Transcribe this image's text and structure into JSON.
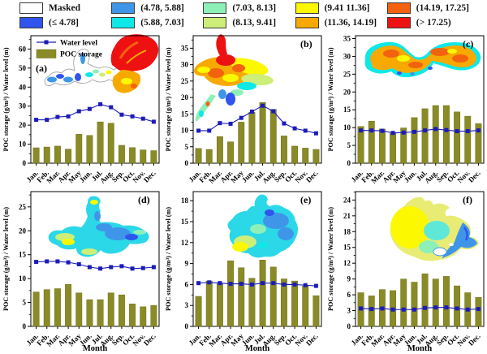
{
  "legend": {
    "items": [
      {
        "label": "Masked",
        "color": "#ffffff"
      },
      {
        "label": "(≤ 4.78]",
        "color": "#2f55ee"
      },
      {
        "label": "(4.78, 5.88]",
        "color": "#3f96e8"
      },
      {
        "label": "(5.88, 7.03]",
        "color": "#10e8e8"
      },
      {
        "label": "(7.03, 8.13]",
        "color": "#8df0b8"
      },
      {
        "label": "(8.13, 9.41]",
        "color": "#cdee78"
      },
      {
        "label": "(9.41 11.36]",
        "color": "#fcf800"
      },
      {
        "label": "(11.36, 14.19]",
        "color": "#f7a900"
      },
      {
        "label": "(14.19, 17.25]",
        "color": "#f2620f"
      },
      {
        "label": "(> 17.25)",
        "color": "#ee1111"
      }
    ]
  },
  "series_legend": {
    "water_level": "Water level",
    "poc_storage": "POC storage"
  },
  "axis": {
    "ylabel": "POC storage (g/m³) / Water level (m)",
    "xlabel": "Month"
  },
  "months": [
    "Jan.",
    "Feb.",
    "Mar.",
    "Apr.",
    "May",
    "Jun.",
    "Jul.",
    "Aug.",
    "Sep.",
    "Oct.",
    "Nov.",
    "Dec."
  ],
  "colors": {
    "bar": "#8a8b26",
    "bar_edge": "#6d6e18",
    "line": "#1c1cb8"
  },
  "chart_data": [
    {
      "type": "bar+line",
      "panel_label": "(a)",
      "letter_pos": "left",
      "inner_legend": true,
      "show_month_label": false,
      "ylim": [
        0,
        67
      ],
      "ytick_step": 10,
      "ytick_max": 60,
      "bar_series": "POC storage",
      "bars": [
        8.1,
        8.5,
        9.0,
        7.4,
        15.2,
        14.6,
        21.7,
        21.0,
        9.4,
        8.2,
        7.0,
        6.6
      ],
      "line_series": "Water level",
      "line": [
        22.8,
        22.8,
        24.3,
        24.6,
        27.3,
        28.5,
        31.0,
        29.4,
        25.5,
        24.6,
        23.4,
        21.8
      ]
    },
    {
      "type": "bar+line",
      "panel_label": "(b)",
      "letter_pos": "right",
      "inner_legend": false,
      "show_month_label": false,
      "ylim": [
        0,
        38.8
      ],
      "ytick_step": 5,
      "ytick_max": 35,
      "bar_series": "POC storage",
      "bars": [
        4.5,
        4.2,
        8.1,
        6.5,
        12.5,
        15.5,
        18.5,
        16.4,
        8.3,
        5.2,
        4.6,
        4.2
      ],
      "line_series": "Water level",
      "line": [
        9.9,
        9.9,
        12.2,
        12.0,
        13.8,
        15.7,
        17.5,
        15.8,
        12.1,
        10.6,
        9.9,
        9.1
      ]
    },
    {
      "type": "bar+line",
      "panel_label": "(c)",
      "letter_pos": "right",
      "inner_legend": false,
      "show_month_label": false,
      "ylim": [
        0,
        35.8
      ],
      "ytick_step": 5,
      "ytick_max": 35,
      "bar_series": "POC storage",
      "bars": [
        10.3,
        11.8,
        9.6,
        8.4,
        9.9,
        12.8,
        15.3,
        16.2,
        16.2,
        14.4,
        13.2,
        11.1
      ],
      "line_series": "Water level",
      "line": [
        9.2,
        9.2,
        9.1,
        8.5,
        8.6,
        8.8,
        9.2,
        9.6,
        9.3,
        9.0,
        9.0,
        9.2
      ]
    },
    {
      "type": "bar+line",
      "panel_label": "(d)",
      "letter_pos": "right",
      "inner_legend": false,
      "show_month_label": true,
      "ylim": [
        0,
        28.2
      ],
      "ytick_step": 5,
      "ytick_max": 25,
      "bar_series": "POC storage",
      "bars": [
        7.2,
        7.7,
        7.9,
        8.8,
        7.0,
        5.6,
        5.6,
        7.0,
        6.6,
        4.7,
        4.1,
        4.4
      ],
      "line_series": "Water level",
      "line": [
        13.5,
        13.6,
        13.6,
        13.4,
        13.0,
        12.4,
        12.1,
        12.4,
        12.6,
        12.1,
        12.2,
        12.4
      ]
    },
    {
      "type": "bar+line",
      "panel_label": "(e)",
      "letter_pos": "right",
      "inner_legend": false,
      "show_month_label": true,
      "ylim": [
        0,
        19.3
      ],
      "ytick_step": 3,
      "ytick_max": 18,
      "bar_series": "POC storage",
      "bars": [
        4.3,
        6.5,
        6.1,
        9.4,
        8.4,
        6.9,
        9.5,
        8.5,
        6.8,
        6.5,
        5.8,
        4.4
      ],
      "line_series": "Water level",
      "line": [
        6.2,
        6.3,
        6.2,
        6.1,
        6.1,
        6.0,
        6.2,
        6.2,
        6.0,
        6.0,
        5.9,
        5.8
      ]
    },
    {
      "type": "bar+line",
      "panel_label": "(f)",
      "letter_pos": "right",
      "inner_legend": false,
      "show_month_label": true,
      "ylim": [
        0,
        25.6
      ],
      "ytick_step": 3,
      "ytick_max": 24,
      "bar_series": "POC storage",
      "bars": [
        6.4,
        5.8,
        7.0,
        6.8,
        9.0,
        8.4,
        10.0,
        9.0,
        9.5,
        7.7,
        6.4,
        5.5
      ],
      "line_series": "Water level",
      "line": [
        3.4,
        3.3,
        3.4,
        3.2,
        3.2,
        3.2,
        3.5,
        3.6,
        3.6,
        3.4,
        3.2,
        3.3
      ]
    }
  ]
}
